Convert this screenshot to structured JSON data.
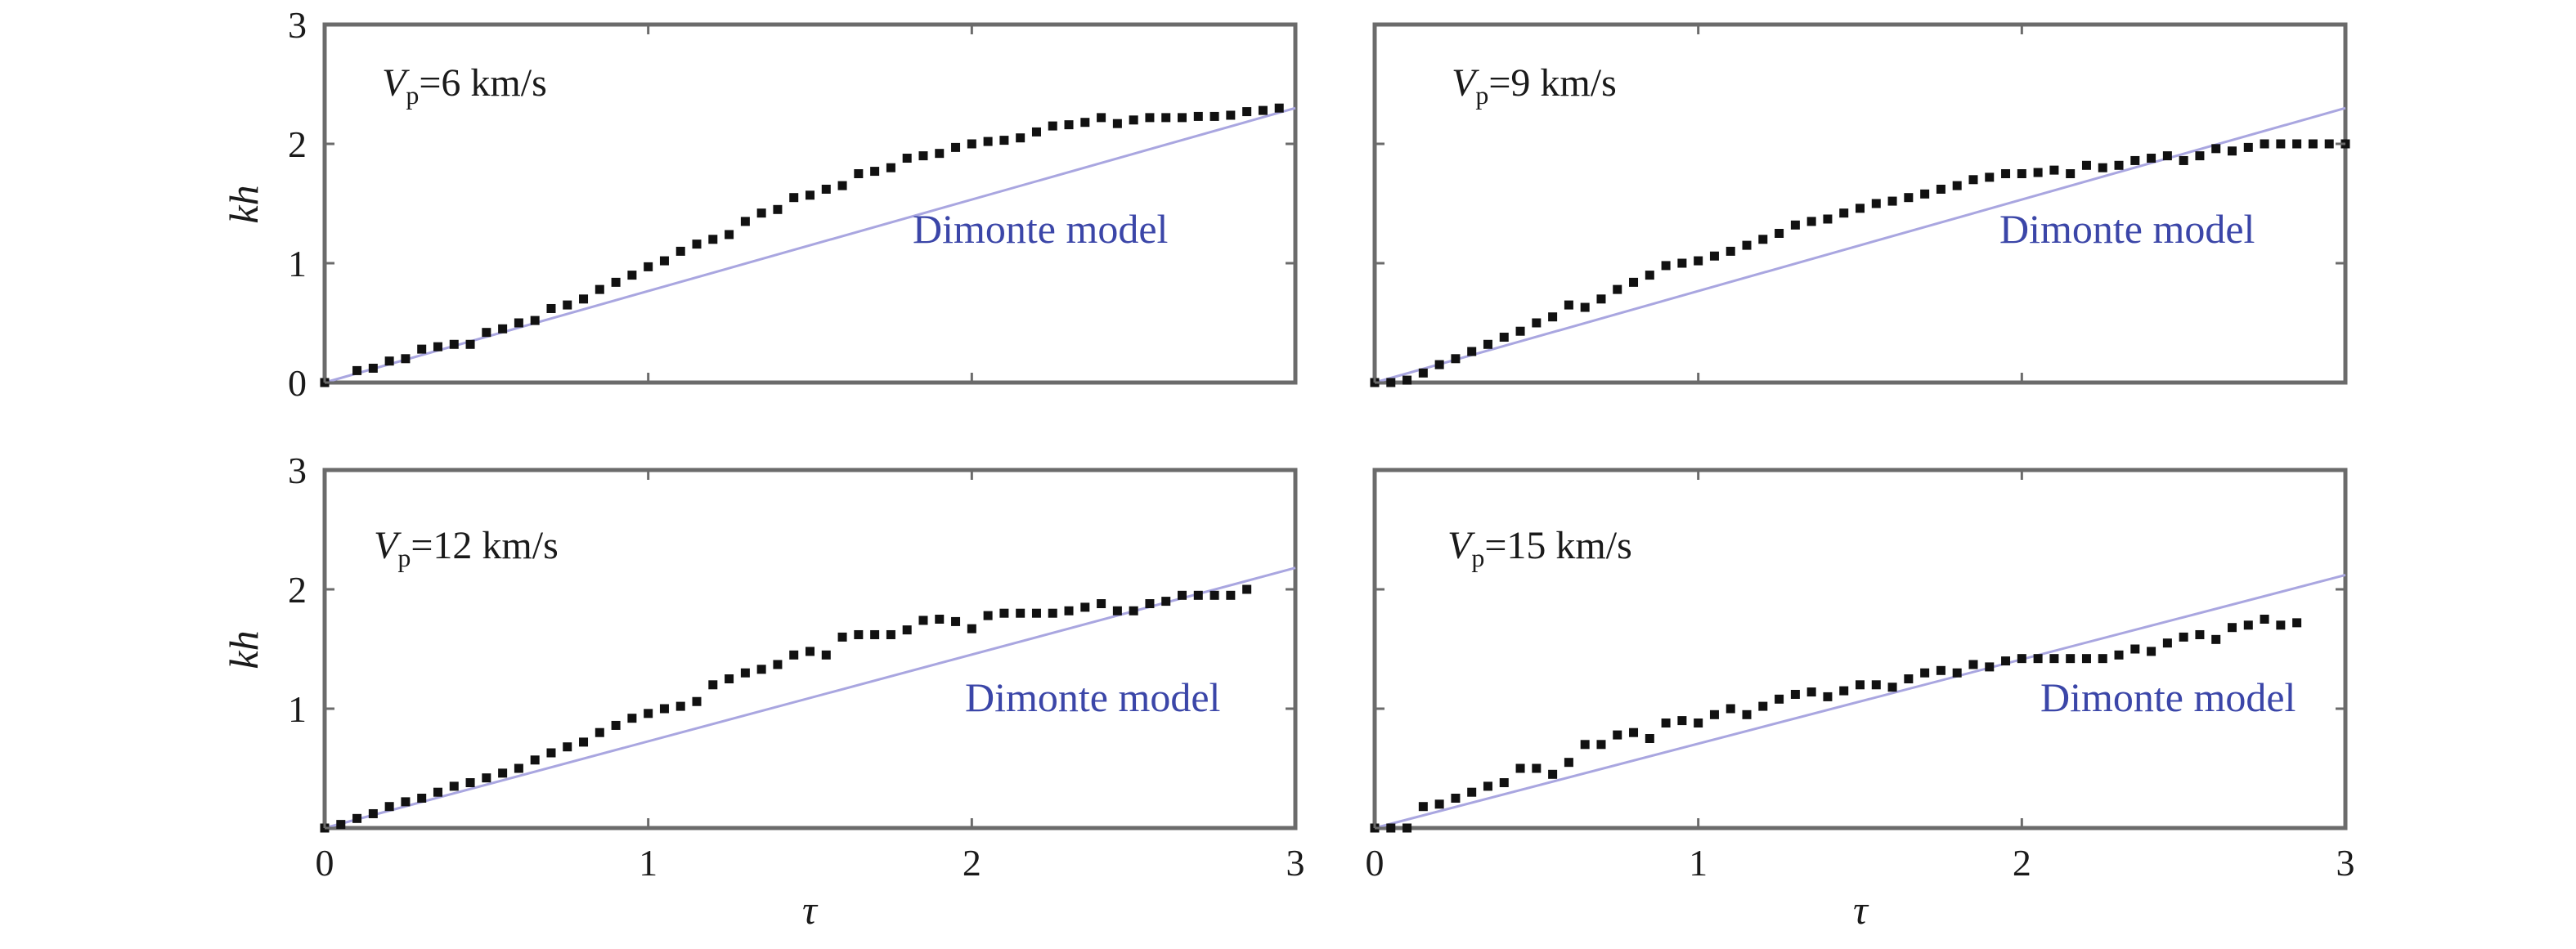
{
  "chart_data": [
    {
      "type": "scatter",
      "panel": "top-left",
      "vp_label": {
        "symbol": "V",
        "subscript": "p",
        "text": "=6 km/s"
      },
      "model_label": "Dimonte model",
      "xlabel": "",
      "ylabel": "kh",
      "xlim": [
        0,
        3
      ],
      "ylim": [
        0,
        3
      ],
      "xticks": [],
      "yticks": [
        "0",
        "1",
        "2",
        "3"
      ],
      "model_line": {
        "name": "Dimonte model",
        "x": [
          0,
          3
        ],
        "y": [
          0,
          2.3
        ]
      },
      "points": {
        "name": "simulation",
        "x": [
          0.0,
          0.1,
          0.15,
          0.2,
          0.25,
          0.3,
          0.35,
          0.4,
          0.45,
          0.5,
          0.55,
          0.6,
          0.65,
          0.7,
          0.75,
          0.8,
          0.85,
          0.9,
          0.95,
          1.0,
          1.05,
          1.1,
          1.15,
          1.2,
          1.25,
          1.3,
          1.35,
          1.4,
          1.45,
          1.5,
          1.55,
          1.6,
          1.65,
          1.7,
          1.75,
          1.8,
          1.85,
          1.9,
          1.95,
          2.0,
          2.05,
          2.1,
          2.15,
          2.2,
          2.25,
          2.3,
          2.35,
          2.4,
          2.45,
          2.5,
          2.55,
          2.6,
          2.65,
          2.7,
          2.75,
          2.8,
          2.85,
          2.9,
          2.95
        ],
        "y": [
          0.0,
          0.1,
          0.12,
          0.18,
          0.2,
          0.28,
          0.3,
          0.32,
          0.32,
          0.42,
          0.45,
          0.5,
          0.52,
          0.62,
          0.65,
          0.7,
          0.78,
          0.84,
          0.9,
          0.97,
          1.02,
          1.1,
          1.16,
          1.2,
          1.24,
          1.35,
          1.42,
          1.45,
          1.55,
          1.57,
          1.62,
          1.65,
          1.75,
          1.77,
          1.8,
          1.88,
          1.9,
          1.92,
          1.97,
          2.0,
          2.02,
          2.03,
          2.05,
          2.1,
          2.15,
          2.16,
          2.18,
          2.22,
          2.17,
          2.2,
          2.22,
          2.22,
          2.22,
          2.23,
          2.23,
          2.24,
          2.27,
          2.28,
          2.3
        ]
      }
    },
    {
      "type": "scatter",
      "panel": "top-right",
      "vp_label": {
        "symbol": "V",
        "subscript": "p",
        "text": "=9 km/s"
      },
      "model_label": "Dimonte model",
      "xlabel": "",
      "ylabel": "",
      "xlim": [
        0,
        3
      ],
      "ylim": [
        0,
        3
      ],
      "xticks": [],
      "yticks": [],
      "model_line": {
        "name": "Dimonte model",
        "x": [
          0,
          3
        ],
        "y": [
          0,
          2.3
        ]
      },
      "points": {
        "name": "simulation",
        "x": [
          0.0,
          0.05,
          0.1,
          0.15,
          0.2,
          0.25,
          0.3,
          0.35,
          0.4,
          0.45,
          0.5,
          0.55,
          0.6,
          0.65,
          0.7,
          0.75,
          0.8,
          0.85,
          0.9,
          0.95,
          1.0,
          1.05,
          1.1,
          1.15,
          1.2,
          1.25,
          1.3,
          1.35,
          1.4,
          1.45,
          1.5,
          1.55,
          1.6,
          1.65,
          1.7,
          1.75,
          1.8,
          1.85,
          1.9,
          1.95,
          2.0,
          2.05,
          2.1,
          2.15,
          2.2,
          2.25,
          2.3,
          2.35,
          2.4,
          2.45,
          2.5,
          2.55,
          2.6,
          2.65,
          2.7,
          2.75,
          2.8,
          2.85,
          2.9,
          2.95,
          3.0
        ],
        "y": [
          0.0,
          0.0,
          0.02,
          0.08,
          0.15,
          0.2,
          0.26,
          0.32,
          0.38,
          0.43,
          0.5,
          0.55,
          0.65,
          0.63,
          0.7,
          0.78,
          0.84,
          0.9,
          0.98,
          1.0,
          1.02,
          1.06,
          1.1,
          1.15,
          1.2,
          1.25,
          1.32,
          1.35,
          1.37,
          1.42,
          1.46,
          1.5,
          1.52,
          1.55,
          1.58,
          1.62,
          1.65,
          1.7,
          1.72,
          1.75,
          1.75,
          1.76,
          1.78,
          1.75,
          1.82,
          1.8,
          1.82,
          1.86,
          1.88,
          1.9,
          1.86,
          1.9,
          1.96,
          1.94,
          1.97,
          2.0,
          2.0,
          2.0,
          2.0,
          2.0,
          2.0
        ]
      }
    },
    {
      "type": "scatter",
      "panel": "bottom-left",
      "vp_label": {
        "symbol": "V",
        "subscript": "p",
        "text": "=12 km/s"
      },
      "model_label": "Dimonte model",
      "xlabel": "τ",
      "ylabel": "kh",
      "xlim": [
        0,
        3
      ],
      "ylim": [
        0,
        3
      ],
      "xticks": [
        "0",
        "1",
        "2",
        "3"
      ],
      "yticks": [
        "1",
        "2",
        "3"
      ],
      "model_line": {
        "name": "Dimonte model",
        "x": [
          0,
          3
        ],
        "y": [
          0,
          2.18
        ]
      },
      "points": {
        "name": "simulation",
        "x": [
          0.0,
          0.05,
          0.1,
          0.15,
          0.2,
          0.25,
          0.3,
          0.35,
          0.4,
          0.45,
          0.5,
          0.55,
          0.6,
          0.65,
          0.7,
          0.75,
          0.8,
          0.85,
          0.9,
          0.95,
          1.0,
          1.05,
          1.1,
          1.15,
          1.2,
          1.25,
          1.3,
          1.35,
          1.4,
          1.45,
          1.5,
          1.55,
          1.6,
          1.65,
          1.7,
          1.75,
          1.8,
          1.85,
          1.9,
          1.95,
          2.0,
          2.05,
          2.1,
          2.15,
          2.2,
          2.25,
          2.3,
          2.35,
          2.4,
          2.45,
          2.5,
          2.55,
          2.6,
          2.65,
          2.7,
          2.75,
          2.8,
          2.85
        ],
        "y": [
          0.0,
          0.03,
          0.08,
          0.12,
          0.18,
          0.22,
          0.25,
          0.3,
          0.35,
          0.38,
          0.42,
          0.46,
          0.5,
          0.57,
          0.63,
          0.68,
          0.72,
          0.8,
          0.86,
          0.92,
          0.96,
          1.0,
          1.02,
          1.06,
          1.2,
          1.25,
          1.3,
          1.33,
          1.37,
          1.45,
          1.48,
          1.45,
          1.6,
          1.62,
          1.62,
          1.62,
          1.66,
          1.74,
          1.75,
          1.73,
          1.67,
          1.78,
          1.8,
          1.8,
          1.8,
          1.8,
          1.82,
          1.85,
          1.88,
          1.82,
          1.82,
          1.88,
          1.9,
          1.95,
          1.95,
          1.95,
          1.95,
          2.0
        ]
      }
    },
    {
      "type": "scatter",
      "panel": "bottom-right",
      "vp_label": {
        "symbol": "V",
        "subscript": "p",
        "text": "=15 km/s"
      },
      "model_label": "Dimonte model",
      "xlabel": "τ",
      "ylabel": "",
      "xlim": [
        0,
        3
      ],
      "ylim": [
        0,
        3
      ],
      "xticks": [
        "0",
        "1",
        "2",
        "3"
      ],
      "yticks": [],
      "model_line": {
        "name": "Dimonte model",
        "x": [
          0,
          3
        ],
        "y": [
          0,
          2.12
        ]
      },
      "points": {
        "name": "simulation",
        "x": [
          0.0,
          0.05,
          0.1,
          0.15,
          0.2,
          0.25,
          0.3,
          0.35,
          0.4,
          0.45,
          0.5,
          0.55,
          0.6,
          0.65,
          0.7,
          0.75,
          0.8,
          0.85,
          0.9,
          0.95,
          1.0,
          1.05,
          1.1,
          1.15,
          1.2,
          1.25,
          1.3,
          1.35,
          1.4,
          1.45,
          1.5,
          1.55,
          1.6,
          1.65,
          1.7,
          1.75,
          1.8,
          1.85,
          1.9,
          1.95,
          2.0,
          2.05,
          2.1,
          2.15,
          2.2,
          2.25,
          2.3,
          2.35,
          2.4,
          2.45,
          2.5,
          2.55,
          2.6,
          2.65,
          2.7,
          2.75,
          2.8,
          2.85
        ],
        "y": [
          0.0,
          0.0,
          0.0,
          0.18,
          0.2,
          0.25,
          0.3,
          0.35,
          0.38,
          0.5,
          0.5,
          0.45,
          0.55,
          0.7,
          0.7,
          0.78,
          0.8,
          0.75,
          0.88,
          0.9,
          0.88,
          0.95,
          1.0,
          0.95,
          1.02,
          1.08,
          1.12,
          1.14,
          1.1,
          1.15,
          1.2,
          1.2,
          1.18,
          1.25,
          1.3,
          1.32,
          1.3,
          1.37,
          1.35,
          1.4,
          1.42,
          1.42,
          1.42,
          1.42,
          1.42,
          1.42,
          1.45,
          1.5,
          1.48,
          1.55,
          1.6,
          1.62,
          1.58,
          1.68,
          1.7,
          1.75,
          1.7,
          1.72
        ]
      }
    }
  ],
  "colors": {
    "model_line": "#a9a6e0",
    "model_label": "#3b46a8",
    "points": "#111111",
    "frame": "#6b6b6b"
  }
}
